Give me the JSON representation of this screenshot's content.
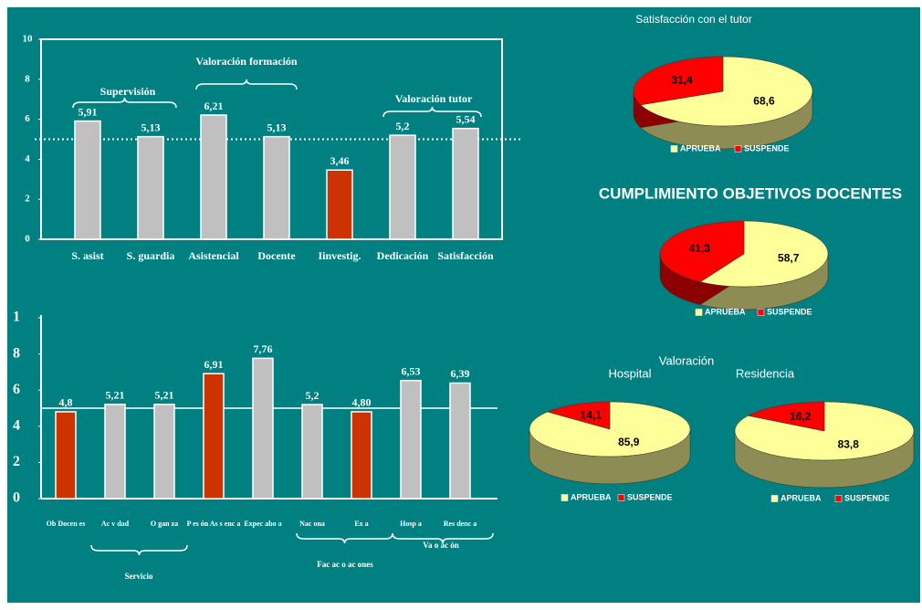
{
  "section_title": "Valoración",
  "chart_data": [
    {
      "type": "bar",
      "categories": [
        "S. asist",
        "S. guardia",
        "Asistencial",
        "Docente",
        "Iinvestig.",
        "Dedicación",
        "Satisfacción"
      ],
      "values": [
        5.91,
        5.13,
        6.21,
        5.13,
        3.46,
        5.2,
        5.54
      ],
      "value_labels": [
        "5,91",
        "5,13",
        "6,21",
        "5,13",
        "3,46",
        "5,2",
        "5,54"
      ],
      "colors": [
        "#c0c0c0",
        "#c0c0c0",
        "#c0c0c0",
        "#c0c0c0",
        "#cc3300",
        "#c0c0c0",
        "#c0c0c0"
      ],
      "ylim": [
        0,
        10
      ],
      "yticks": [
        0,
        2,
        4,
        6,
        8,
        10
      ],
      "reference_line": 5,
      "reference_style": "dotted",
      "annotations": [
        "Supervisión",
        "Valoración formación",
        "Valoración tutor"
      ]
    },
    {
      "type": "bar",
      "categories": [
        "Ob Docen es",
        "Ac v dad",
        "O gan za",
        "P es ón As s enc a",
        "Expec abo a",
        "Nac ona",
        "Ex a",
        "Hosp a",
        "Res denc a"
      ],
      "values": [
        4.8,
        5.21,
        5.21,
        6.91,
        7.76,
        5.2,
        4.8,
        6.53,
        6.39
      ],
      "value_labels": [
        "4,8",
        "5,21",
        "5,21",
        "6,91",
        "7,76",
        "5,2",
        "4,80",
        "6,53",
        "6,39"
      ],
      "colors": [
        "#cc3300",
        "#c0c0c0",
        "#c0c0c0",
        "#cc3300",
        "#c0c0c0",
        "#c0c0c0",
        "#cc3300",
        "#c0c0c0",
        "#c0c0c0"
      ],
      "ylim": [
        0,
        10
      ],
      "yticks": [
        0,
        2,
        4,
        6,
        8,
        {
          "value": 10,
          "label": "1"
        }
      ],
      "reference_line": 5,
      "reference_style": "solid",
      "annotations": [
        "Servicio",
        "Fac ac o ac ones",
        "Va o ac ón"
      ]
    },
    {
      "type": "pie",
      "title": "Satisfacción con el tutor",
      "categories": [
        "APRUEBA",
        "SUSPENDE"
      ],
      "values": [
        68.6,
        31.4
      ],
      "value_labels": [
        "68,6",
        "31,4"
      ],
      "colors": [
        "#ffff99",
        "#ff0000"
      ]
    },
    {
      "type": "pie",
      "title": "CUMPLIMIENTO OBJETIVOS DOCENTES",
      "categories": [
        "APRUEBA",
        "SUSPENDE"
      ],
      "values": [
        58.7,
        41.3
      ],
      "value_labels": [
        "58,7",
        "41,3"
      ],
      "colors": [
        "#ffff99",
        "#ff0000"
      ]
    },
    {
      "type": "pie",
      "title": "Hospital",
      "categories": [
        "APRUEBA",
        "SUSPENDE"
      ],
      "values": [
        85.9,
        14.1
      ],
      "value_labels": [
        "85,9",
        "14,1"
      ],
      "colors": [
        "#ffff99",
        "#ff0000"
      ]
    },
    {
      "type": "pie",
      "title": "Residencia",
      "categories": [
        "APRUEBA",
        "SUSPENDE"
      ],
      "values": [
        83.8,
        16.2
      ],
      "value_labels": [
        "83,8",
        "16,2"
      ],
      "colors": [
        "#ffff99",
        "#ff0000"
      ]
    }
  ]
}
